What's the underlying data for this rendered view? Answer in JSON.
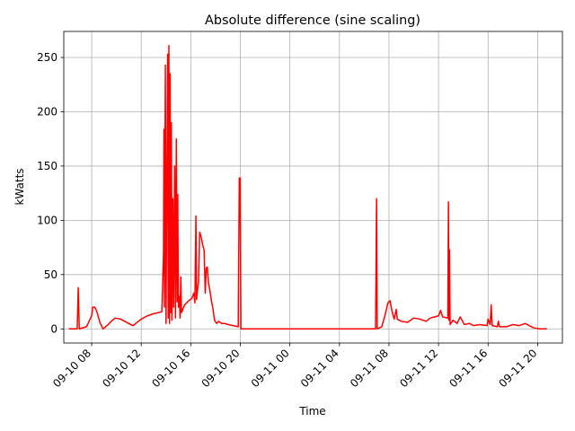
{
  "chart_data": {
    "type": "line",
    "title": "Absolute difference (sine scaling)",
    "xlabel": "Time",
    "ylabel": "kWatts",
    "grid": true,
    "x_ticks": [
      "09-10 08",
      "09-10 12",
      "09-10 16",
      "09-10 20",
      "09-11 00",
      "09-11 04",
      "09-11 08",
      "09-11 12",
      "09-11 16",
      "09-11 20"
    ],
    "y_ticks": [
      0,
      50,
      100,
      150,
      200,
      250
    ],
    "xlim": [
      "2018-09-10 05:45",
      "2018-09-11 22:00"
    ],
    "ylim": [
      -13,
      274
    ],
    "series": [
      {
        "color": "#ff0000",
        "points": [
          [
            "2018-09-10 06:10",
            0
          ],
          [
            "2018-09-10 06:50",
            0
          ],
          [
            "2018-09-10 06:55",
            38
          ],
          [
            "2018-09-10 07:00",
            0
          ],
          [
            "2018-09-10 07:35",
            2
          ],
          [
            "2018-09-10 07:50",
            8
          ],
          [
            "2018-09-10 08:00",
            12
          ],
          [
            "2018-09-10 08:05",
            20
          ],
          [
            "2018-09-10 08:15",
            20
          ],
          [
            "2018-09-10 08:25",
            16
          ],
          [
            "2018-09-10 08:40",
            6
          ],
          [
            "2018-09-10 08:55",
            0
          ],
          [
            "2018-09-10 09:20",
            4
          ],
          [
            "2018-09-10 09:40",
            8
          ],
          [
            "2018-09-10 09:55",
            10
          ],
          [
            "2018-09-10 10:20",
            9
          ],
          [
            "2018-09-10 10:50",
            6
          ],
          [
            "2018-09-10 11:20",
            3
          ],
          [
            "2018-09-10 11:40",
            6
          ],
          [
            "2018-09-10 12:00",
            9
          ],
          [
            "2018-09-10 12:30",
            12
          ],
          [
            "2018-09-10 13:00",
            14
          ],
          [
            "2018-09-10 13:25",
            15
          ],
          [
            "2018-09-10 13:40",
            16
          ],
          [
            "2018-09-10 13:48",
            70
          ],
          [
            "2018-09-10 13:50",
            184
          ],
          [
            "2018-09-10 13:52",
            20
          ],
          [
            "2018-09-10 13:57",
            243
          ],
          [
            "2018-09-10 14:00",
            5
          ],
          [
            "2018-09-10 14:05",
            160
          ],
          [
            "2018-09-10 14:08",
            253
          ],
          [
            "2018-09-10 14:11",
            10
          ],
          [
            "2018-09-10 14:14",
            261
          ],
          [
            "2018-09-10 14:17",
            5
          ],
          [
            "2018-09-10 14:20",
            235
          ],
          [
            "2018-09-10 14:23",
            15
          ],
          [
            "2018-09-10 14:26",
            190
          ],
          [
            "2018-09-10 14:29",
            8
          ],
          [
            "2018-09-10 14:33",
            120
          ],
          [
            "2018-09-10 14:37",
            20
          ],
          [
            "2018-09-10 14:42",
            150
          ],
          [
            "2018-09-10 14:46",
            10
          ],
          [
            "2018-09-10 14:50",
            175
          ],
          [
            "2018-09-10 14:54",
            25
          ],
          [
            "2018-09-10 14:57",
            124
          ],
          [
            "2018-09-10 15:00",
            20
          ],
          [
            "2018-09-10 15:05",
            30
          ],
          [
            "2018-09-10 15:08",
            10
          ],
          [
            "2018-09-10 15:12",
            48
          ],
          [
            "2018-09-10 15:15",
            15
          ],
          [
            "2018-09-10 15:30",
            22
          ],
          [
            "2018-09-10 15:50",
            26
          ],
          [
            "2018-09-10 16:05",
            28
          ],
          [
            "2018-09-10 16:15",
            33
          ],
          [
            "2018-09-10 16:20",
            24
          ],
          [
            "2018-09-10 16:25",
            104
          ],
          [
            "2018-09-10 16:28",
            27
          ],
          [
            "2018-09-10 16:38",
            45
          ],
          [
            "2018-09-10 16:43",
            89
          ],
          [
            "2018-09-10 16:50",
            85
          ],
          [
            "2018-09-10 16:57",
            78
          ],
          [
            "2018-09-10 17:05",
            72
          ],
          [
            "2018-09-10 17:10",
            33
          ],
          [
            "2018-09-10 17:15",
            56
          ],
          [
            "2018-09-10 17:20",
            57
          ],
          [
            "2018-09-10 17:26",
            42
          ],
          [
            "2018-09-10 17:32",
            36
          ],
          [
            "2018-09-10 17:40",
            26
          ],
          [
            "2018-09-10 17:48",
            18
          ],
          [
            "2018-09-10 17:55",
            8
          ],
          [
            "2018-09-10 18:05",
            5
          ],
          [
            "2018-09-10 18:15",
            7
          ],
          [
            "2018-09-10 18:30",
            5
          ],
          [
            "2018-09-10 18:45",
            5
          ],
          [
            "2018-09-10 19:00",
            4
          ],
          [
            "2018-09-10 19:25",
            3
          ],
          [
            "2018-09-10 19:50",
            2
          ],
          [
            "2018-09-10 19:55",
            139
          ],
          [
            "2018-09-10 19:59",
            139
          ],
          [
            "2018-09-10 20:03",
            0
          ],
          [
            "2018-09-11 06:55",
            0
          ],
          [
            "2018-09-11 07:00",
            120
          ],
          [
            "2018-09-11 07:03",
            0
          ],
          [
            "2018-09-11 07:25",
            2
          ],
          [
            "2018-09-11 07:40",
            12
          ],
          [
            "2018-09-11 07:55",
            24
          ],
          [
            "2018-09-11 08:05",
            26
          ],
          [
            "2018-09-11 08:15",
            16
          ],
          [
            "2018-09-11 08:25",
            9
          ],
          [
            "2018-09-11 08:35",
            18
          ],
          [
            "2018-09-11 08:40",
            9
          ],
          [
            "2018-09-11 09:00",
            7
          ],
          [
            "2018-09-11 09:30",
            6
          ],
          [
            "2018-09-11 10:00",
            10
          ],
          [
            "2018-09-11 10:30",
            9
          ],
          [
            "2018-09-11 11:00",
            7
          ],
          [
            "2018-09-11 11:20",
            10
          ],
          [
            "2018-09-11 11:40",
            11
          ],
          [
            "2018-09-11 12:00",
            12
          ],
          [
            "2018-09-11 12:10",
            17
          ],
          [
            "2018-09-11 12:20",
            11
          ],
          [
            "2018-09-11 12:45",
            10
          ],
          [
            "2018-09-11 12:48",
            117
          ],
          [
            "2018-09-11 12:50",
            8
          ],
          [
            "2018-09-11 12:53",
            73
          ],
          [
            "2018-09-11 12:56",
            4
          ],
          [
            "2018-09-11 13:10",
            8
          ],
          [
            "2018-09-11 13:30",
            5
          ],
          [
            "2018-09-11 13:45",
            11
          ],
          [
            "2018-09-11 14:05",
            4
          ],
          [
            "2018-09-11 14:30",
            5
          ],
          [
            "2018-09-11 14:50",
            3
          ],
          [
            "2018-09-11 15:20",
            4
          ],
          [
            "2018-09-11 15:55",
            3
          ],
          [
            "2018-09-11 16:00",
            9
          ],
          [
            "2018-09-11 16:10",
            4
          ],
          [
            "2018-09-11 16:15",
            22
          ],
          [
            "2018-09-11 16:20",
            3
          ],
          [
            "2018-09-11 16:45",
            2
          ],
          [
            "2018-09-11 16:50",
            7
          ],
          [
            "2018-09-11 16:55",
            2
          ],
          [
            "2018-09-11 17:30",
            2
          ],
          [
            "2018-09-11 18:00",
            4
          ],
          [
            "2018-09-11 18:30",
            3
          ],
          [
            "2018-09-11 19:00",
            5
          ],
          [
            "2018-09-11 19:20",
            3
          ],
          [
            "2018-09-11 19:40",
            1
          ],
          [
            "2018-09-11 20:10",
            0
          ],
          [
            "2018-09-11 20:45",
            0
          ]
        ]
      }
    ]
  }
}
